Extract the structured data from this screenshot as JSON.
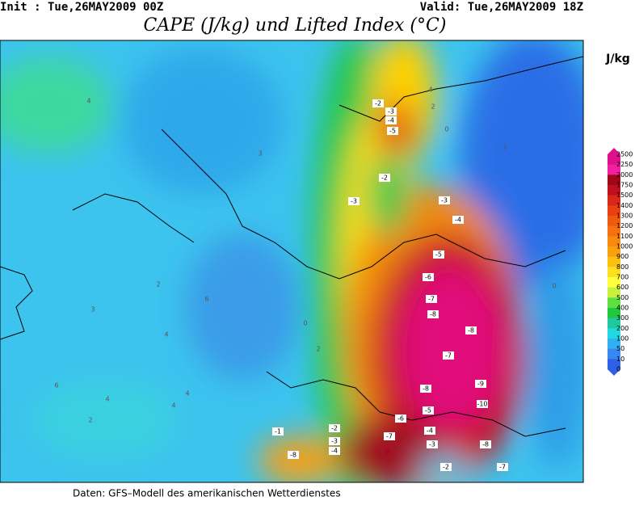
{
  "header": {
    "init": "Init : Tue,26MAY2009 00Z",
    "valid": "Valid: Tue,26MAY2009 18Z",
    "title": "CAPE (J/kg) und Lifted Index (°C)"
  },
  "legend": {
    "unit": "J/kg",
    "labels": [
      "2500",
      "2250",
      "2000",
      "1750",
      "1500",
      "1400",
      "1300",
      "1200",
      "1100",
      "1000",
      "900",
      "800",
      "700",
      "600",
      "500",
      "400",
      "300",
      "200",
      "100",
      "50",
      "10",
      "0"
    ]
  },
  "map": {
    "negative_labels": [
      "-2",
      "-3",
      "-4",
      "-5",
      "-3",
      "-2",
      "-3",
      "-4",
      "-5",
      "-6",
      "-7",
      "-8",
      "-8",
      "-7",
      "-8",
      "-9",
      "-10",
      "-5",
      "-6",
      "-7",
      "-4",
      "-3",
      "-8",
      "-7",
      "-2",
      "-8",
      "-2",
      "-3",
      "-4",
      "-1"
    ],
    "positive_labels": [
      "4",
      "3",
      "2",
      "4",
      "3",
      "6",
      "4",
      "4",
      "4",
      "2",
      "0",
      "2",
      "4",
      "2",
      "0",
      "2",
      "0",
      "6"
    ]
  },
  "footer": "Daten: GFS–Modell des amerikanischen Wetterdienstes"
}
